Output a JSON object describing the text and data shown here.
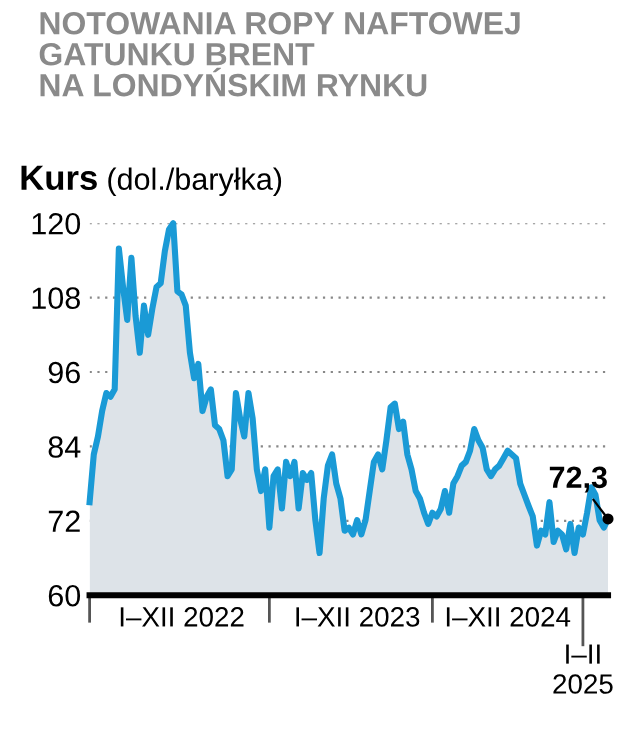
{
  "chart_data": {
    "type": "area",
    "title": "NOTOWANIA ROPY NAFTOWEJ\nGATUNKU BRENT\nNA LONDYŃSKIM RYNKU",
    "ylabel": "Kurs (dol./baryłka)",
    "categories": [
      null,
      null,
      null,
      null,
      null,
      null,
      null,
      null,
      null,
      null,
      null,
      null,
      null,
      null,
      null,
      null,
      null,
      null,
      null,
      null,
      null,
      null,
      "I–XII 2022",
      null,
      null,
      null,
      null,
      null,
      null,
      null,
      null,
      null,
      null,
      null,
      null,
      null,
      null,
      null,
      null,
      null,
      null,
      null,
      null,
      null,
      null,
      null,
      null,
      null,
      null,
      null,
      null,
      null,
      null,
      null,
      null,
      null,
      null,
      null,
      null,
      null,
      null,
      null,
      null,
      null,
      "I–XII 2023",
      null,
      null,
      null,
      null,
      null,
      null,
      null,
      null,
      null,
      null,
      null,
      null,
      null,
      null,
      null,
      null,
      null,
      null,
      null,
      null,
      null,
      null,
      null,
      null,
      null,
      null,
      null,
      null,
      null,
      null,
      null,
      null,
      null,
      null,
      null,
      "I–XII 2024",
      null,
      null,
      null,
      null,
      null,
      null,
      null,
      null,
      null,
      null,
      null,
      null,
      null,
      null,
      null,
      null,
      null,
      "I–II\n2025",
      null,
      null,
      null,
      null,
      null,
      null
    ],
    "series": [
      {
        "color": "#1a9ad6",
        "values": [
          75,
          82.7,
          85.6,
          89.7,
          92.6,
          92,
          93.2,
          115.9,
          109.7,
          104.4,
          114.4,
          105,
          99.1,
          106.7,
          102,
          106.2,
          109.7,
          110.3,
          115.5,
          119,
          120,
          109,
          108.5,
          106.7,
          99.1,
          95,
          97.3,
          89.7,
          92,
          93.2,
          87.4,
          86.8,
          85,
          79.2,
          80.3,
          92.6,
          88.5,
          85.6,
          92.6,
          88.5,
          80.3,
          76.8,
          80.3,
          70.9,
          79.2,
          80.3,
          74,
          81.5,
          79.2,
          81.5,
          74,
          79.7,
          78.6,
          79.7,
          72.1,
          66.8,
          75.6,
          80.9,
          82.7,
          78,
          75.6,
          70.4,
          70.9,
          69.8,
          72.1,
          69.8,
          72.1,
          76.8,
          81.5,
          82.7,
          80.3,
          85,
          90.3,
          90.9,
          86.8,
          88,
          82.7,
          80.3,
          76.8,
          75.6,
          73.3,
          71.5,
          73.3,
          72.7,
          73.9,
          76.8,
          73.3,
          78,
          79.2,
          80.9,
          81.5,
          83.3,
          86.8,
          85,
          83.8,
          80.3,
          79.2,
          80.3,
          80.9,
          82.1,
          83.3,
          82.7,
          82.1,
          78,
          76.2,
          74.4,
          72.7,
          68,
          70.4,
          69.8,
          75,
          68.6,
          70.4,
          69.8,
          67.4,
          71.5,
          66.8,
          70.9,
          69.8,
          73.3,
          77.4,
          76.2,
          72.1,
          70.9,
          72.3
        ],
        "value_labels": [
          null,
          null,
          null,
          null,
          null,
          null,
          null,
          null,
          null,
          null,
          null,
          null,
          null,
          null,
          null,
          null,
          null,
          null,
          null,
          null,
          null,
          null,
          null,
          null,
          null,
          null,
          null,
          null,
          null,
          null,
          null,
          null,
          null,
          null,
          null,
          null,
          null,
          null,
          null,
          null,
          null,
          null,
          null,
          null,
          null,
          null,
          null,
          null,
          null,
          null,
          null,
          null,
          null,
          null,
          null,
          null,
          null,
          null,
          null,
          null,
          null,
          null,
          null,
          null,
          null,
          null,
          null,
          null,
          null,
          null,
          null,
          null,
          null,
          null,
          null,
          null,
          null,
          null,
          null,
          null,
          null,
          null,
          null,
          null,
          null,
          null,
          null,
          null,
          null,
          null,
          null,
          null,
          null,
          null,
          null,
          null,
          null,
          null,
          null,
          null,
          null,
          null,
          null,
          null,
          null,
          null,
          null,
          null,
          null,
          null,
          null,
          null,
          null,
          null,
          null,
          null,
          null,
          null,
          null,
          null,
          null,
          null,
          null,
          null,
          "72,3"
        ]
      }
    ],
    "ylim": [
      60,
      120
    ],
    "yticks": [
      60,
      72,
      84,
      96,
      108,
      120
    ],
    "grid": "y",
    "line_style": "solid"
  }
}
